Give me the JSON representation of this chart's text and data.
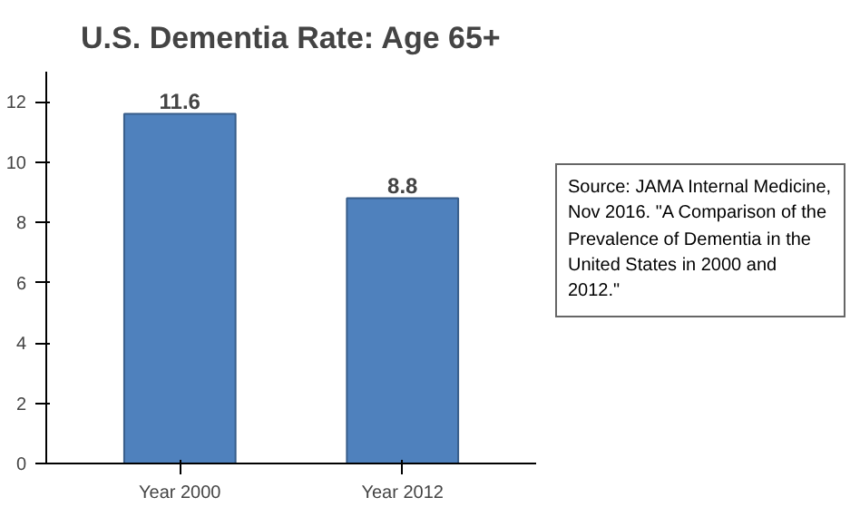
{
  "chart_data": {
    "type": "bar",
    "title": "U.S. Dementia Rate: Age 65+",
    "categories": [
      "Year 2000",
      "Year 2012"
    ],
    "values": [
      11.6,
      8.8
    ],
    "color": "#4f81bd",
    "ylim": [
      0,
      13
    ],
    "yticks": [
      0,
      2,
      4,
      6,
      8,
      10,
      12
    ],
    "grid": false,
    "data_labels": true,
    "annotations": [
      "Source: JAMA Internal Medicine, Nov 2016. \"A Comparison of the Prevalence of Dementia in the United States in 2000 and 2012.\""
    ]
  }
}
